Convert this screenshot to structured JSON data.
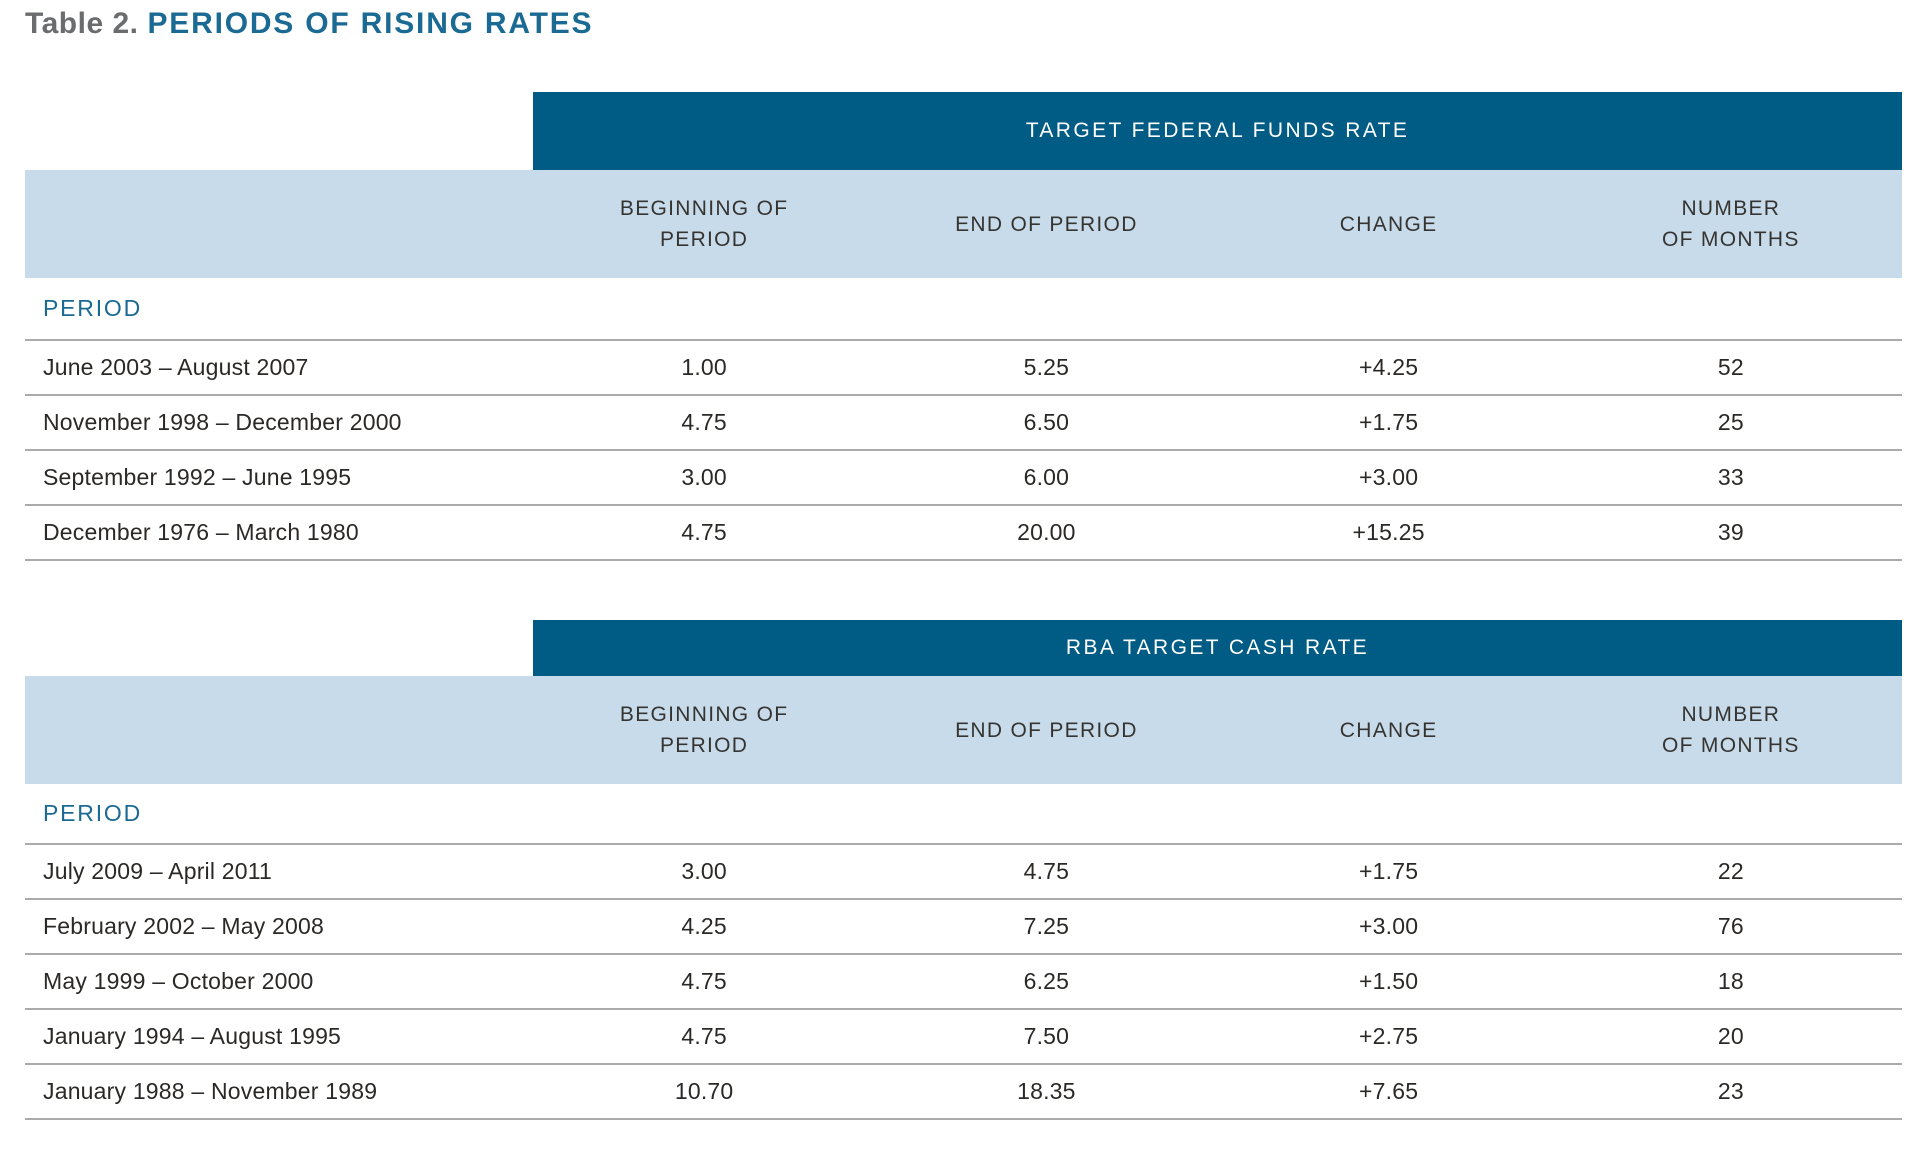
{
  "page": {
    "title_prefix": "Table 2.",
    "title": "PERIODS OF RISING RATES"
  },
  "colors": {
    "band_background": "#005B85",
    "band_text": "#FFFFFF",
    "header_background": "#C7DBEA",
    "header_text": "#363431",
    "accent_blue": "#1B6A94",
    "title_gray": "#6B6C6E",
    "body_text": "#2B2926",
    "rule_gray": "#ABABAB"
  },
  "tables": [
    {
      "band_title": "TARGET FEDERAL FUNDS RATE",
      "row_header_label": "PERIOD",
      "columns": [
        {
          "line1": "BEGINNING OF",
          "line2": "PERIOD"
        },
        {
          "line1": "END OF PERIOD",
          "line2": ""
        },
        {
          "line1": "CHANGE",
          "line2": ""
        },
        {
          "line1": "NUMBER",
          "line2": "OF MONTHS"
        }
      ],
      "rows": [
        {
          "period": "June 2003 – August 2007",
          "beginning": "1.00",
          "end": "5.25",
          "change": "+4.25",
          "months": "52"
        },
        {
          "period": "November 1998 – December 2000",
          "beginning": "4.75",
          "end": "6.50",
          "change": "+1.75",
          "months": "25"
        },
        {
          "period": "September 1992 – June 1995",
          "beginning": "3.00",
          "end": "6.00",
          "change": "+3.00",
          "months": "33"
        },
        {
          "period": "December 1976 – March 1980",
          "beginning": "4.75",
          "end": "20.00",
          "change": "+15.25",
          "months": "39"
        }
      ]
    },
    {
      "band_title": "RBA TARGET CASH RATE",
      "row_header_label": "PERIOD",
      "columns": [
        {
          "line1": "BEGINNING OF",
          "line2": "PERIOD"
        },
        {
          "line1": "END OF PERIOD",
          "line2": ""
        },
        {
          "line1": "CHANGE",
          "line2": ""
        },
        {
          "line1": "NUMBER",
          "line2": "OF MONTHS"
        }
      ],
      "rows": [
        {
          "period": "July 2009 – April 2011",
          "beginning": "3.00",
          "end": "4.75",
          "change": "+1.75",
          "months": "22"
        },
        {
          "period": "February 2002 – May 2008",
          "beginning": "4.25",
          "end": "7.25",
          "change": "+3.00",
          "months": "76"
        },
        {
          "period": "May 1999 – October 2000",
          "beginning": "4.75",
          "end": "6.25",
          "change": "+1.50",
          "months": "18"
        },
        {
          "period": "January 1994 – August 1995",
          "beginning": "4.75",
          "end": "7.50",
          "change": "+2.75",
          "months": "20"
        },
        {
          "period": "January 1988 – November 1989",
          "beginning": "10.70",
          "end": "18.35",
          "change": "+7.65",
          "months": "23"
        }
      ]
    }
  ],
  "chart_data": [
    {
      "type": "table",
      "title": "TARGET FEDERAL FUNDS RATE",
      "columns": [
        "PERIOD",
        "BEGINNING OF PERIOD",
        "END OF PERIOD",
        "CHANGE",
        "NUMBER OF MONTHS"
      ],
      "rows": [
        [
          "June 2003 – August 2007",
          1.0,
          5.25,
          4.25,
          52
        ],
        [
          "November 1998 – December 2000",
          4.75,
          6.5,
          1.75,
          25
        ],
        [
          "September 1992 – June 1995",
          3.0,
          6.0,
          3.0,
          33
        ],
        [
          "December 1976 – March 1980",
          4.75,
          20.0,
          15.25,
          39
        ]
      ]
    },
    {
      "type": "table",
      "title": "RBA TARGET CASH RATE",
      "columns": [
        "PERIOD",
        "BEGINNING OF PERIOD",
        "END OF PERIOD",
        "CHANGE",
        "NUMBER OF MONTHS"
      ],
      "rows": [
        [
          "July 2009 – April 2011",
          3.0,
          4.75,
          1.75,
          22
        ],
        [
          "February 2002 – May 2008",
          4.25,
          7.25,
          3.0,
          76
        ],
        [
          "May 1999 – October 2000",
          4.75,
          6.25,
          1.5,
          18
        ],
        [
          "January 1994 – August 1995",
          4.75,
          7.5,
          2.75,
          20
        ],
        [
          "January 1988 – November 1989",
          10.7,
          18.35,
          7.65,
          23
        ]
      ]
    }
  ]
}
